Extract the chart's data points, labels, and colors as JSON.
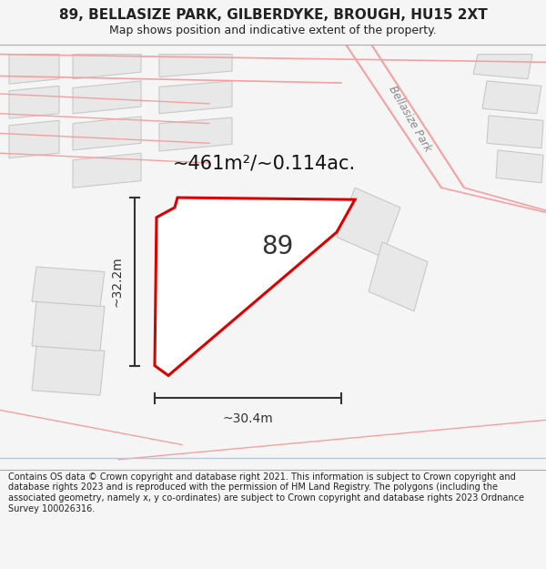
{
  "title_line1": "89, BELLASIZE PARK, GILBERDYKE, BROUGH, HU15 2XT",
  "title_line2": "Map shows position and indicative extent of the property.",
  "footer_text": "Contains OS data © Crown copyright and database right 2021. This information is subject to Crown copyright and database rights 2023 and is reproduced with the permission of HM Land Registry. The polygons (including the associated geometry, namely x, y co-ordinates) are subject to Crown copyright and database rights 2023 Ordnance Survey 100026316.",
  "area_label": "~461m²/~0.114ac.",
  "plot_number": "89",
  "dim_width": "~30.4m",
  "dim_height": "~32.2m",
  "road_label": "Bellasize Park",
  "bg_color": "#f5f5f5",
  "map_bg": "#ffffff",
  "plot_color": "#dd0000",
  "road_color": "#f5a0a0",
  "building_fill": "#e8e8e8",
  "building_edge": "#c8c8c8",
  "dim_color": "#333333",
  "text_color": "#222222"
}
